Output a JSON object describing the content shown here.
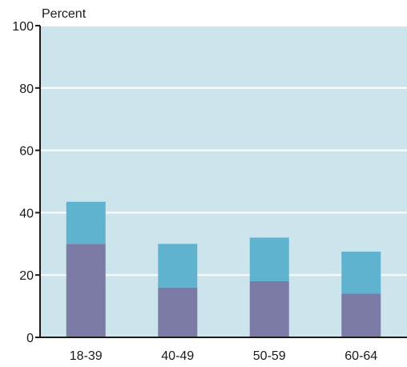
{
  "chart_data": {
    "type": "bar",
    "stacked": true,
    "ylabel": "Percent",
    "xlabel": "",
    "ylim": [
      0,
      100
    ],
    "yticks": [
      0,
      20,
      40,
      60,
      80,
      100
    ],
    "categories": [
      "18-39",
      "40-49",
      "50-59",
      "60-64"
    ],
    "series": [
      {
        "values": [
          30,
          16,
          18,
          14
        ],
        "color": "#7b7ba6"
      },
      {
        "values": [
          13.5,
          14,
          14,
          13.5
        ],
        "color": "#5fb3cf"
      }
    ],
    "grid": true,
    "plot_background": "#cce4ec",
    "gridline_color": "#ffffff"
  }
}
